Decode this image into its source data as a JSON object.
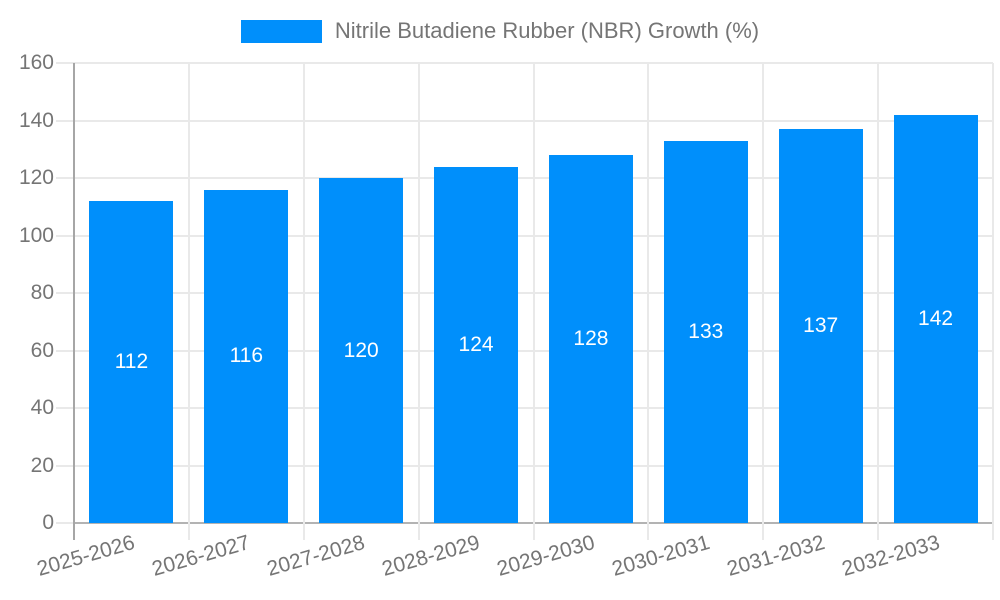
{
  "legend": {
    "label": "Nitrile Butadiene Rubber (NBR) Growth (%)"
  },
  "colors": {
    "bar": "#008FFB",
    "grid": "#e9e9e9",
    "axis_line": "#a6a6a6",
    "baseline": "#b3b3b3",
    "axis_text": "#757575",
    "value_text": "#ffffff"
  },
  "chart_data": {
    "type": "bar",
    "title": "Nitrile Butadiene Rubber (NBR) Growth (%)",
    "categories": [
      "2025-2026",
      "2026-2027",
      "2027-2028",
      "2028-2029",
      "2029-2030",
      "2030-2031",
      "2031-2032",
      "2032-2033"
    ],
    "values": [
      112,
      116,
      120,
      124,
      128,
      133,
      137,
      142
    ],
    "xlabel": "",
    "ylabel": "",
    "ylim": [
      0,
      160
    ],
    "ytick_step": 20,
    "yticks": [
      0,
      20,
      40,
      60,
      80,
      100,
      120,
      140,
      160
    ],
    "grid": "horizontal-and-vertical",
    "legend_position": "top-center",
    "value_label_position": "inside-center",
    "x_label_rotation_deg": -16
  }
}
